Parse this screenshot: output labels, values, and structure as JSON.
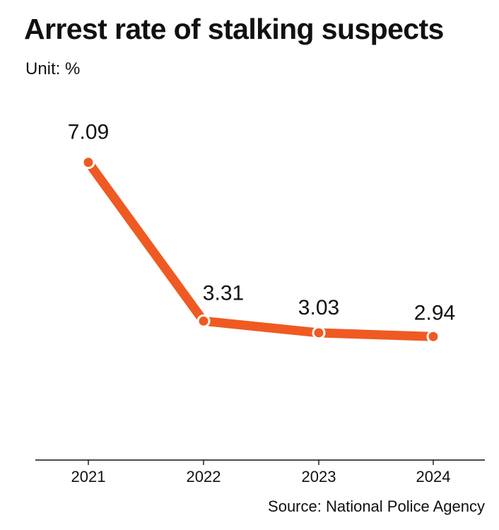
{
  "chart_data": {
    "type": "line",
    "title": "Arrest rate of stalking suspects",
    "unit_label": "Unit: %",
    "categories": [
      "2021",
      "2022",
      "2023",
      "2024"
    ],
    "series": [
      {
        "values": [
          7.09,
          3.31,
          3.03,
          2.94
        ],
        "color": "#ef5a22"
      }
    ],
    "data_labels": [
      "7.09",
      "3.31",
      "3.03",
      "2.94"
    ],
    "xlabel": "",
    "ylabel": "",
    "ylim": [
      0,
      8.6
    ],
    "grid": false,
    "legend": "none",
    "source": "Source: National Police Agency"
  }
}
